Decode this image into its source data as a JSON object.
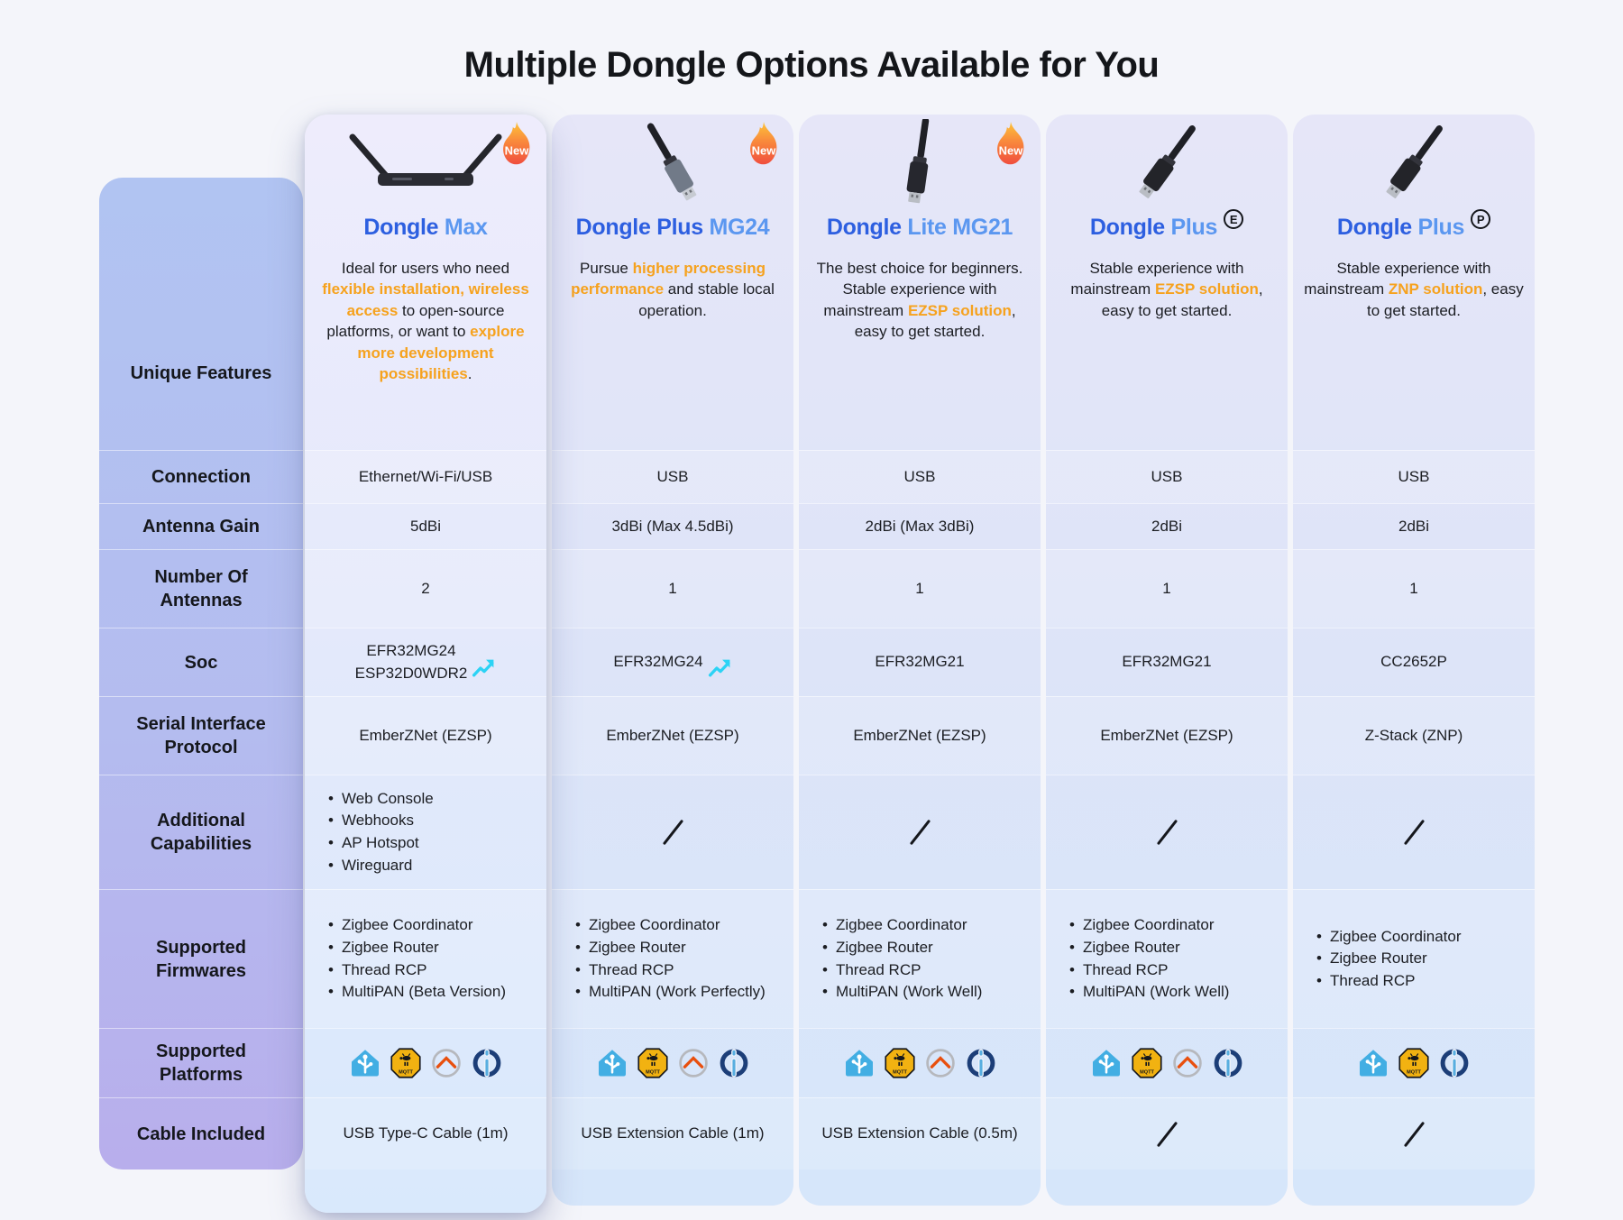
{
  "title": "Multiple Dongle Options Available for You",
  "row_labels": [
    {
      "key": "unique_features",
      "label": "Unique Features"
    },
    {
      "key": "connection",
      "label": "Connection"
    },
    {
      "key": "antenna_gain",
      "label": "Antenna Gain"
    },
    {
      "key": "num_antennas",
      "label": "Number Of Antennas"
    },
    {
      "key": "soc",
      "label": "Soc"
    },
    {
      "key": "serial_protocol",
      "label": "Serial Interface Protocol"
    },
    {
      "key": "additional",
      "label": "Additional Capabilities"
    },
    {
      "key": "firmwares",
      "label": "Supported Firmwares"
    },
    {
      "key": "platforms",
      "label": "Supported Platforms"
    },
    {
      "key": "cable",
      "label": "Cable Included"
    }
  ],
  "platform_names": {
    "home-assistant": "Home Assistant",
    "zigbee2mqtt": "Zigbee2MQTT",
    "openhab": "openHAB",
    "iobroker": "ioBroker"
  },
  "accent_colors": {
    "title_dark_blue": "#2d5fe0",
    "title_light_blue": "#5b97f0",
    "highlight_orange": "#f6a21e",
    "boost_cyan": "#2cd3f5"
  },
  "products": [
    {
      "id": "dongle-max",
      "featured": true,
      "badge": "New",
      "variant_letter": null,
      "image": "max",
      "title_segments": [
        {
          "text": "Dongle ",
          "tone": "dark"
        },
        {
          "text": "Max",
          "tone": "light"
        }
      ],
      "description": [
        {
          "text": "Ideal for users who need "
        },
        {
          "text": "flexible installation, wireless access",
          "hl": true
        },
        {
          "text": " to open-source platforms, or want to "
        },
        {
          "text": "explore more development possibilities",
          "hl": true
        },
        {
          "text": "."
        }
      ],
      "connection": "Ethernet/Wi-Fi/USB",
      "antenna_gain": "5dBi",
      "num_antennas": "2",
      "soc_lines": [
        "EFR32MG24",
        "ESP32D0WDR2"
      ],
      "soc_boost": true,
      "serial_protocol": "EmberZNet (EZSP)",
      "additional": [
        "Web Console",
        "Webhooks",
        "AP Hotspot",
        "Wireguard"
      ],
      "firmwares": [
        "Zigbee Coordinator",
        "Zigbee Router",
        "Thread RCP",
        "MultiPAN (Beta Version)"
      ],
      "platforms": [
        "home-assistant",
        "zigbee2mqtt",
        "openhab",
        "iobroker"
      ],
      "cable": "USB Type-C Cable (1m)"
    },
    {
      "id": "dongle-plus-mg24",
      "featured": false,
      "badge": "New",
      "variant_letter": null,
      "image": "stick-gray",
      "title_segments": [
        {
          "text": "Dongle Plus ",
          "tone": "dark"
        },
        {
          "text": "MG24",
          "tone": "light"
        }
      ],
      "description": [
        {
          "text": "Pursue "
        },
        {
          "text": "higher processing performance",
          "hl": true
        },
        {
          "text": " and stable local operation."
        }
      ],
      "connection": "USB",
      "antenna_gain": "3dBi (Max 4.5dBi)",
      "num_antennas": "1",
      "soc_lines": [
        "EFR32MG24"
      ],
      "soc_boost": true,
      "serial_protocol": "EmberZNet (EZSP)",
      "additional": "/",
      "firmwares": [
        "Zigbee Coordinator",
        "Zigbee Router",
        "Thread RCP",
        "MultiPAN (Work Perfectly)"
      ],
      "platforms": [
        "home-assistant",
        "zigbee2mqtt",
        "openhab",
        "iobroker"
      ],
      "cable": "USB Extension Cable (1m)"
    },
    {
      "id": "dongle-lite-mg21",
      "featured": false,
      "badge": "New",
      "variant_letter": null,
      "image": "stick-upright",
      "title_segments": [
        {
          "text": "Dongle ",
          "tone": "dark"
        },
        {
          "text": "Lite MG21",
          "tone": "light"
        }
      ],
      "description": [
        {
          "text": "The best choice for beginners. Stable experience with mainstream "
        },
        {
          "text": "EZSP solution",
          "hl": true
        },
        {
          "text": ", easy to get started."
        }
      ],
      "connection": "USB",
      "antenna_gain": "2dBi (Max 3dBi)",
      "num_antennas": "1",
      "soc_lines": [
        "EFR32MG21"
      ],
      "soc_boost": false,
      "serial_protocol": "EmberZNet (EZSP)",
      "additional": "/",
      "firmwares": [
        "Zigbee Coordinator",
        "Zigbee Router",
        "Thread RCP",
        "MultiPAN (Work Well)"
      ],
      "platforms": [
        "home-assistant",
        "zigbee2mqtt",
        "openhab",
        "iobroker"
      ],
      "cable": "USB Extension Cable (0.5m)"
    },
    {
      "id": "dongle-plus-e",
      "featured": false,
      "badge": null,
      "variant_letter": "E",
      "image": "stick-black",
      "title_segments": [
        {
          "text": "Dongle ",
          "tone": "dark"
        },
        {
          "text": "Plus",
          "tone": "light"
        }
      ],
      "description": [
        {
          "text": "Stable experience with mainstream "
        },
        {
          "text": "EZSP solution",
          "hl": true
        },
        {
          "text": ", easy to get started."
        }
      ],
      "connection": "USB",
      "antenna_gain": "2dBi",
      "num_antennas": "1",
      "soc_lines": [
        "EFR32MG21"
      ],
      "soc_boost": false,
      "serial_protocol": "EmberZNet (EZSP)",
      "additional": "/",
      "firmwares": [
        "Zigbee Coordinator",
        "Zigbee Router",
        "Thread RCP",
        "MultiPAN (Work Well)"
      ],
      "platforms": [
        "home-assistant",
        "zigbee2mqtt",
        "openhab",
        "iobroker"
      ],
      "cable": "/"
    },
    {
      "id": "dongle-plus-p",
      "featured": false,
      "badge": null,
      "variant_letter": "P",
      "image": "stick-black",
      "title_segments": [
        {
          "text": "Dongle ",
          "tone": "dark"
        },
        {
          "text": "Plus",
          "tone": "light"
        }
      ],
      "description": [
        {
          "text": "Stable experience with mainstream "
        },
        {
          "text": "ZNP solution",
          "hl": true
        },
        {
          "text": ", easy to get started."
        }
      ],
      "connection": "USB",
      "antenna_gain": "2dBi",
      "num_antennas": "1",
      "soc_lines": [
        "CC2652P"
      ],
      "soc_boost": false,
      "serial_protocol": "Z-Stack (ZNP)",
      "additional": "/",
      "firmwares": [
        "Zigbee Coordinator",
        "Zigbee Router",
        "Thread RCP"
      ],
      "platforms": [
        "home-assistant",
        "zigbee2mqtt",
        "iobroker"
      ],
      "cable": "/"
    }
  ],
  "chart_data": {
    "type": "table",
    "title": "Multiple Dongle Options Available for You",
    "columns": [
      "Dongle Max",
      "Dongle Plus MG24",
      "Dongle Lite MG21",
      "Dongle Plus (E)",
      "Dongle Plus (P)"
    ],
    "rows": [
      {
        "label": "Connection",
        "values": [
          "Ethernet/Wi-Fi/USB",
          "USB",
          "USB",
          "USB",
          "USB"
        ]
      },
      {
        "label": "Antenna Gain",
        "values": [
          "5dBi",
          "3dBi (Max 4.5dBi)",
          "2dBi (Max 3dBi)",
          "2dBi",
          "2dBi"
        ]
      },
      {
        "label": "Number Of Antennas",
        "values": [
          "2",
          "1",
          "1",
          "1",
          "1"
        ]
      },
      {
        "label": "Soc",
        "values": [
          "EFR32MG24 ESP32D0WDR2",
          "EFR32MG24",
          "EFR32MG21",
          "EFR32MG21",
          "CC2652P"
        ]
      },
      {
        "label": "Serial Interface Protocol",
        "values": [
          "EmberZNet (EZSP)",
          "EmberZNet (EZSP)",
          "EmberZNet (EZSP)",
          "EmberZNet (EZSP)",
          "Z-Stack (ZNP)"
        ]
      },
      {
        "label": "Additional Capabilities",
        "values": [
          "Web Console; Webhooks; AP Hotspot; Wireguard",
          "/",
          "/",
          "/",
          "/"
        ]
      },
      {
        "label": "Supported Firmwares",
        "values": [
          "Zigbee Coordinator; Zigbee Router; Thread RCP; MultiPAN (Beta Version)",
          "Zigbee Coordinator; Zigbee Router; Thread RCP; MultiPAN (Work Perfectly)",
          "Zigbee Coordinator; Zigbee Router; Thread RCP; MultiPAN (Work Well)",
          "Zigbee Coordinator; Zigbee Router; Thread RCP; MultiPAN (Work Well)",
          "Zigbee Coordinator; Zigbee Router; Thread RCP"
        ]
      },
      {
        "label": "Supported Platforms",
        "values": [
          "Home Assistant; Zigbee2MQTT; openHAB; ioBroker",
          "Home Assistant; Zigbee2MQTT; openHAB; ioBroker",
          "Home Assistant; Zigbee2MQTT; openHAB; ioBroker",
          "Home Assistant; Zigbee2MQTT; openHAB; ioBroker",
          "Home Assistant; Zigbee2MQTT; ioBroker"
        ]
      },
      {
        "label": "Cable Included",
        "values": [
          "USB Type-C Cable (1m)",
          "USB Extension Cable (1m)",
          "USB Extension Cable (0.5m)",
          "/",
          "/"
        ]
      }
    ]
  }
}
